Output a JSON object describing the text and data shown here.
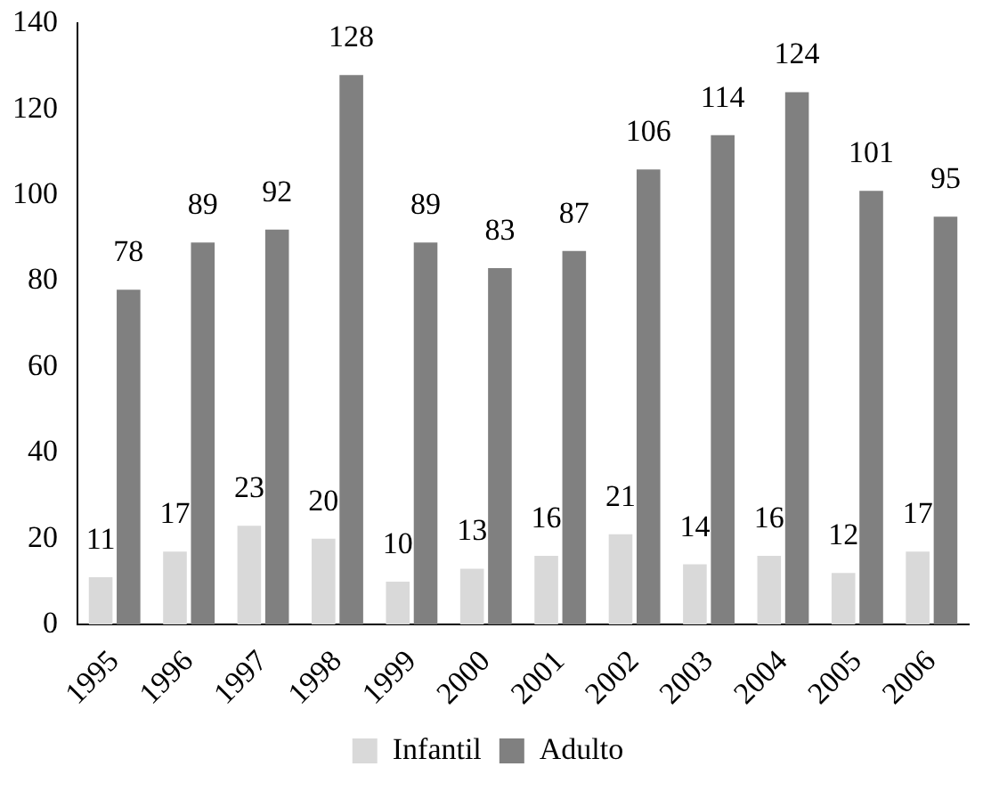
{
  "chart_data": {
    "type": "bar",
    "categories": [
      "1995",
      "1996",
      "1997",
      "1998",
      "1999",
      "2000",
      "2001",
      "2002",
      "2003",
      "2004",
      "2005",
      "2006"
    ],
    "series": [
      {
        "name": "Infantil",
        "color": "#d9d9d9",
        "values": [
          11,
          17,
          23,
          20,
          10,
          13,
          16,
          21,
          14,
          16,
          12,
          17
        ]
      },
      {
        "name": "Adulto",
        "color": "#808080",
        "values": [
          78,
          89,
          92,
          128,
          89,
          83,
          87,
          106,
          114,
          124,
          101,
          95
        ]
      }
    ],
    "ylim": [
      0,
      140
    ],
    "yticks": [
      0,
      20,
      40,
      60,
      80,
      100,
      120,
      140
    ],
    "grid": false,
    "legend": "bottom",
    "data_labels": true
  }
}
